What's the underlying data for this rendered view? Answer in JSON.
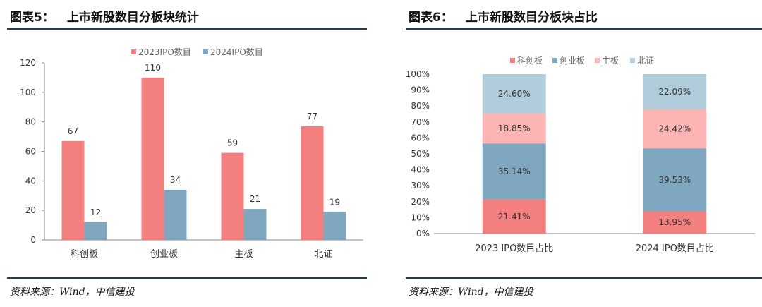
{
  "left": {
    "fig_label": "图表5：",
    "title": "上市新股数目分板块统计",
    "source": "资料来源：Wind，中信建投"
  },
  "right": {
    "fig_label": "图表6：",
    "title": "上市新股数目分板块占比",
    "source": "资料来源：Wind，中信建投"
  },
  "colors": {
    "red": "#f47f7f",
    "blue": "#7fa7c0",
    "pink": "#fbb3b3",
    "lightblue": "#b0cbd9",
    "rule": "#1f3a5f"
  },
  "chart_data": [
    {
      "type": "bar",
      "categories": [
        "科创板",
        "创业板",
        "主板",
        "北证"
      ],
      "series": [
        {
          "name": "2023IPO数目",
          "values": [
            67,
            110,
            59,
            77
          ]
        },
        {
          "name": "2024IPO数目",
          "values": [
            12,
            34,
            21,
            19
          ]
        }
      ],
      "ylim": [
        0,
        120
      ],
      "yticks": [
        0,
        20,
        40,
        60,
        80,
        100,
        120
      ],
      "legend": "top-right",
      "grid": false
    },
    {
      "type": "bar",
      "stacked": true,
      "categories": [
        "2023 IPO数目占比",
        "2024 IPO数目占比"
      ],
      "series": [
        {
          "name": "科创板",
          "values": [
            21.41,
            13.95
          ]
        },
        {
          "name": "创业板",
          "values": [
            35.14,
            39.53
          ]
        },
        {
          "name": "主板",
          "values": [
            18.85,
            24.42
          ]
        },
        {
          "name": "北证",
          "values": [
            24.6,
            22.09
          ]
        }
      ],
      "ylim": [
        0,
        100
      ],
      "yticks": [
        "0%",
        "10%",
        "20%",
        "30%",
        "40%",
        "50%",
        "60%",
        "70%",
        "80%",
        "90%",
        "100%"
      ],
      "legend": "top",
      "grid": false
    }
  ]
}
